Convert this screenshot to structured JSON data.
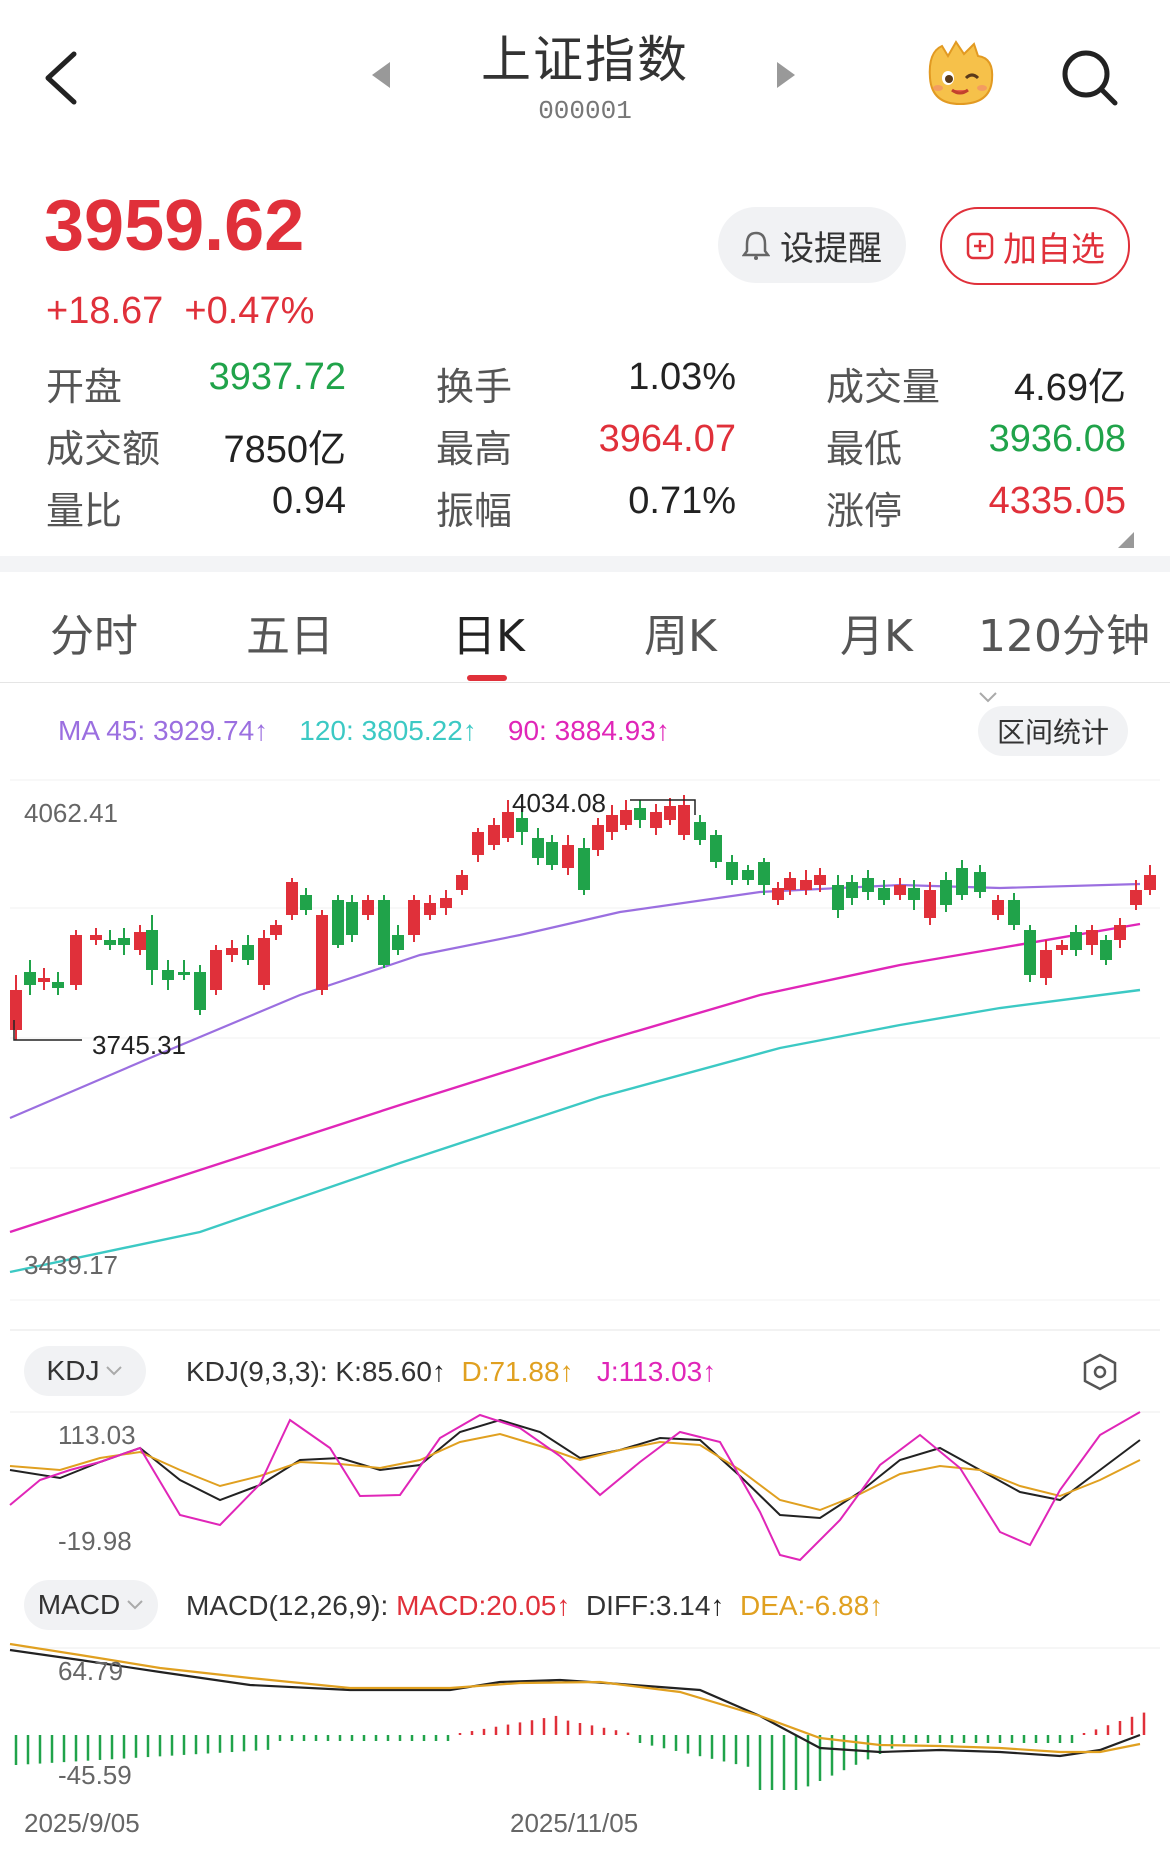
{
  "header": {
    "title": "上证指数",
    "code": "000001"
  },
  "quote": {
    "price": "3959.62",
    "change": "+18.67",
    "change_pct": "+0.47%"
  },
  "actions": {
    "alert_label": "设提醒",
    "watch_label": "加自选"
  },
  "stats": [
    {
      "label": "开盘",
      "value": "3937.72",
      "color": "green"
    },
    {
      "label": "换手",
      "value": "1.03%",
      "color": "black"
    },
    {
      "label": "成交量",
      "value": "4.69亿",
      "color": "black"
    },
    {
      "label": "成交额",
      "value": "7850亿",
      "color": "black"
    },
    {
      "label": "最高",
      "value": "3964.07",
      "color": "red"
    },
    {
      "label": "最低",
      "value": "3936.08",
      "color": "green"
    },
    {
      "label": "量比",
      "value": "0.94",
      "color": "black"
    },
    {
      "label": "振幅",
      "value": "0.71%",
      "color": "black"
    },
    {
      "label": "涨停",
      "value": "4335.05",
      "color": "red"
    }
  ],
  "tabs": [
    "分时",
    "五日",
    "日K",
    "周K",
    "月K",
    "120分钟"
  ],
  "active_tab": "日K",
  "ma": {
    "ma45": "MA 45: 3929.74",
    "ma120": "120: 3805.22",
    "ma90": "90: 3884.93"
  },
  "range_stat_label": "区间统计",
  "kline": {
    "high_label": "4062.41",
    "low_label": "3439.17",
    "max_mark": "4034.08",
    "min_mark": "3745.31"
  },
  "kdj": {
    "button": "KDJ",
    "params": "KDJ(9,3,3):",
    "k": "K:85.60",
    "d": "D:71.88",
    "j": "J:113.03",
    "top": "113.03",
    "bottom": "-19.98"
  },
  "macd": {
    "button": "MACD",
    "params": "MACD(12,26,9):",
    "macd": "MACD:20.05",
    "diff": "DIFF:3.14",
    "dea": "DEA:-6.88",
    "top": "64.79",
    "bottom": "-45.59"
  },
  "dates": [
    "2025/9/05",
    "2025/11/05"
  ],
  "colors": {
    "up": "#e0303a",
    "down": "#20a34a",
    "ma45": "#9b6fe0",
    "ma90": "#e026b8",
    "ma120": "#3cc9c4",
    "dea": "#e0a020"
  }
}
